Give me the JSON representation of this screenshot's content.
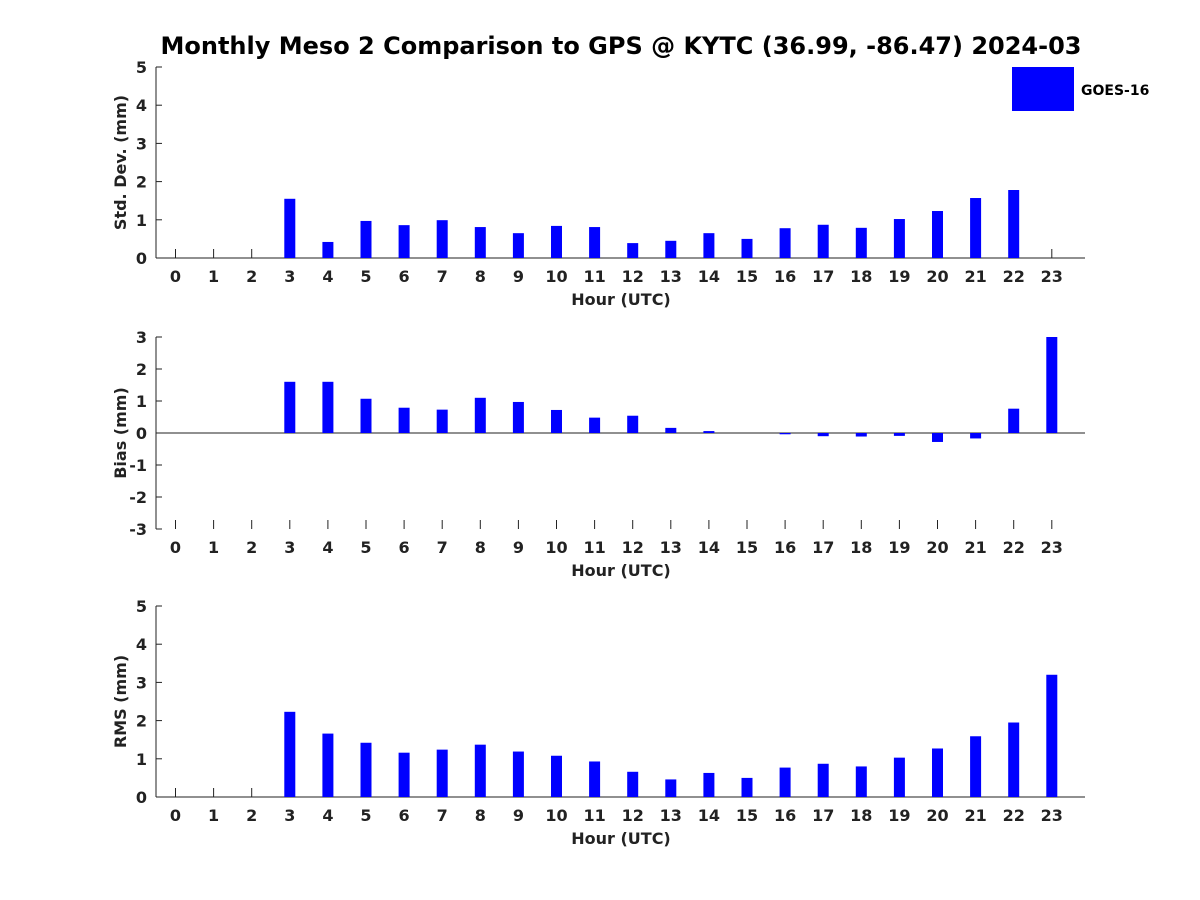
{
  "chart_title": "Monthly Meso 2 Comparison to GPS @ KYTC (36.99, -86.47) 2024-03",
  "legend": {
    "label": "GOES-16",
    "color": "#0000ff"
  },
  "chart_data": [
    {
      "type": "bar",
      "title": "Monthly Meso 2 Comparison to GPS @ KYTC (36.99, -86.47) 2024-03",
      "xlabel": "Hour (UTC)",
      "ylabel": "Std. Dev. (mm)",
      "ylim": [
        0,
        5
      ],
      "yticks": [
        "0",
        "1",
        "2",
        "3",
        "4",
        "5"
      ],
      "categories": [
        "0",
        "1",
        "2",
        "3",
        "4",
        "5",
        "6",
        "7",
        "8",
        "9",
        "10",
        "11",
        "12",
        "13",
        "14",
        "15",
        "16",
        "17",
        "18",
        "19",
        "20",
        "21",
        "22",
        "23"
      ],
      "series": [
        {
          "name": "GOES-16",
          "color": "#0000ff",
          "values": [
            null,
            null,
            null,
            1.55,
            0.42,
            0.97,
            0.86,
            0.99,
            0.81,
            0.65,
            0.84,
            0.81,
            0.39,
            0.45,
            0.65,
            0.5,
            0.78,
            0.87,
            0.79,
            1.02,
            1.23,
            1.57,
            1.78,
            null
          ]
        }
      ],
      "legend": "top-right",
      "grid": false
    },
    {
      "type": "bar",
      "xlabel": "Hour (UTC)",
      "ylabel": "Bias (mm)",
      "ylim": [
        -3,
        3
      ],
      "yticks": [
        "-3",
        "-2",
        "-1",
        "0",
        "1",
        "2",
        "3"
      ],
      "categories": [
        "0",
        "1",
        "2",
        "3",
        "4",
        "5",
        "6",
        "7",
        "8",
        "9",
        "10",
        "11",
        "12",
        "13",
        "14",
        "15",
        "16",
        "17",
        "18",
        "19",
        "20",
        "21",
        "22",
        "23"
      ],
      "series": [
        {
          "name": "GOES-16",
          "color": "#0000ff",
          "values": [
            null,
            null,
            null,
            1.6,
            1.6,
            1.07,
            0.79,
            0.73,
            1.1,
            0.97,
            0.72,
            0.48,
            0.54,
            0.16,
            0.06,
            0.0,
            -0.04,
            -0.1,
            -0.11,
            -0.09,
            -0.28,
            -0.17,
            0.76,
            3.0
          ]
        }
      ],
      "grid": false
    },
    {
      "type": "bar",
      "xlabel": "Hour (UTC)",
      "ylabel": "RMS (mm)",
      "ylim": [
        0,
        5
      ],
      "yticks": [
        "0",
        "1",
        "2",
        "3",
        "4",
        "5"
      ],
      "categories": [
        "0",
        "1",
        "2",
        "3",
        "4",
        "5",
        "6",
        "7",
        "8",
        "9",
        "10",
        "11",
        "12",
        "13",
        "14",
        "15",
        "16",
        "17",
        "18",
        "19",
        "20",
        "21",
        "22",
        "23"
      ],
      "series": [
        {
          "name": "GOES-16",
          "color": "#0000ff",
          "values": [
            null,
            null,
            null,
            2.23,
            1.66,
            1.42,
            1.16,
            1.24,
            1.37,
            1.19,
            1.08,
            0.93,
            0.66,
            0.46,
            0.63,
            0.5,
            0.77,
            0.87,
            0.8,
            1.03,
            1.27,
            1.59,
            1.95,
            3.2
          ]
        }
      ],
      "grid": false
    }
  ]
}
